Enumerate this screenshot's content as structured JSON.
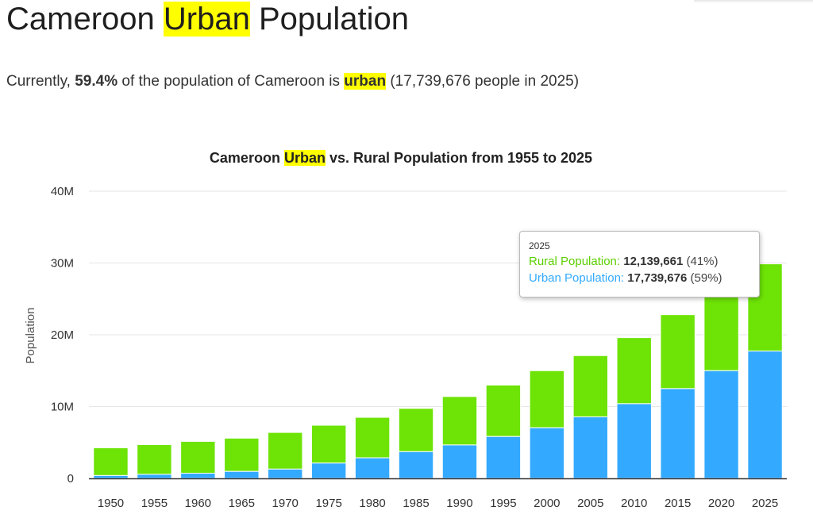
{
  "page": {
    "title_pre": "Cameroon ",
    "title_hl": "Urban",
    "title_post": " Population",
    "sub_a": "Currently, ",
    "sub_pct": "59.4%",
    "sub_b": " of the population of Cameroon is ",
    "sub_hl": "urban",
    "sub_c": " (17,739,676 people in 2025)"
  },
  "colors": {
    "rural": "#6de306",
    "urban": "#33aaff",
    "highlight": "#ffff00",
    "grid": "#e6e6e6",
    "axis": "#333333"
  },
  "chart_data": {
    "type": "bar",
    "stacked": true,
    "title_pre": "Cameroon ",
    "title_hl": "Urban",
    "title_post": " vs. Rural Population from 1955 to 2025",
    "ylabel": "Population",
    "ylim": [
      0,
      40000000
    ],
    "yticks": [
      0,
      10000000,
      20000000,
      30000000,
      40000000
    ],
    "ytick_labels": [
      "0",
      "10M",
      "20M",
      "30M",
      "40M"
    ],
    "grid": true,
    "categories": [
      "1950",
      "1955",
      "1960",
      "1965",
      "1970",
      "1975",
      "1980",
      "1985",
      "1990",
      "1995",
      "2000",
      "2005",
      "2010",
      "2015",
      "2020",
      "2025"
    ],
    "series": [
      {
        "name": "Urban Population",
        "color": "#33aaff",
        "values": [
          400000,
          560000,
          720000,
          970000,
          1290000,
          2130000,
          2860000,
          3720000,
          4650000,
          5830000,
          7050000,
          8570000,
          10400000,
          12500000,
          15000000,
          17739676
        ]
      },
      {
        "name": "Rural Population",
        "color": "#6de306",
        "values": [
          3850000,
          4140000,
          4430000,
          4630000,
          5110000,
          5270000,
          5640000,
          6030000,
          6750000,
          7170000,
          7950000,
          8530000,
          9200000,
          10300000,
          10900000,
          12139661
        ]
      }
    ],
    "tooltip": {
      "year": "2025",
      "rural_label": "Rural Population",
      "rural_value": "12,139,661",
      "rural_pct": "(41%)",
      "urban_label": "Urban Population",
      "urban_value": "17,739,676",
      "urban_pct": "(59%)"
    }
  }
}
